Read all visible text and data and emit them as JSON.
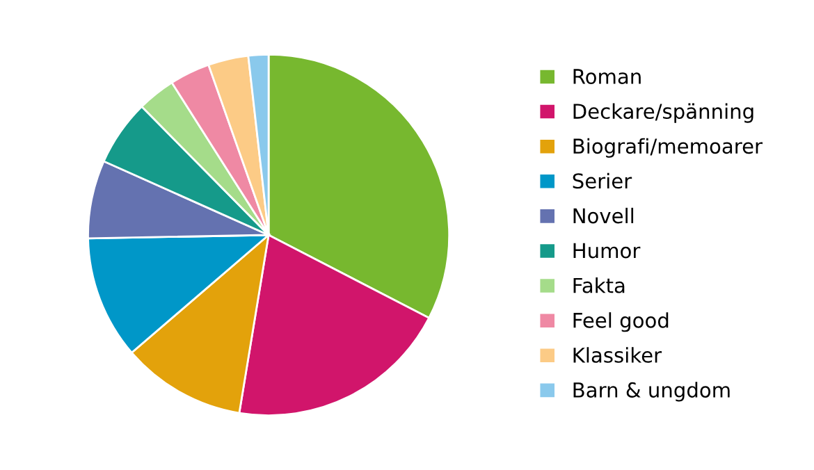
{
  "chart_data": {
    "type": "pie",
    "categories": [
      "Roman",
      "Deckare/spänning",
      "Biografi/memoarer",
      "Serier",
      "Novell",
      "Humor",
      "Fakta",
      "Feel good",
      "Klassiker",
      "Barn & ungdom"
    ],
    "values": [
      32.6,
      20.0,
      11.1,
      11.0,
      7.0,
      5.9,
      3.4,
      3.6,
      3.6,
      1.8
    ],
    "colors": [
      "#77b82f",
      "#d1156b",
      "#e3a20b",
      "#0097c8",
      "#6472b0",
      "#159a8a",
      "#a5dc8a",
      "#ef89a4",
      "#fccb86",
      "#8ac9ec"
    ],
    "legend": "right"
  }
}
